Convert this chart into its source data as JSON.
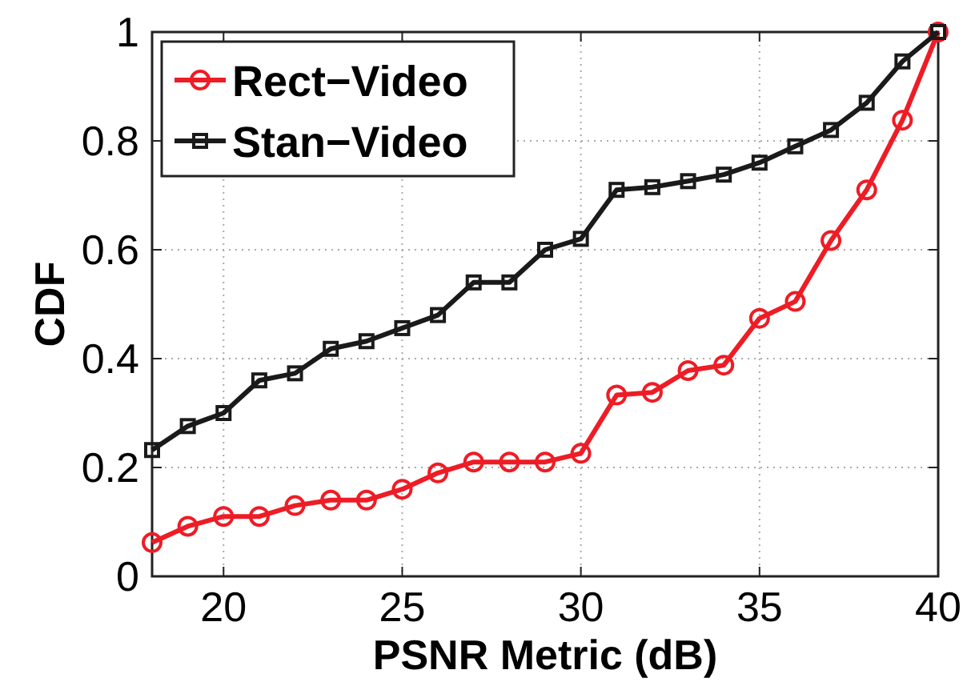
{
  "chart_data": {
    "type": "line",
    "xlabel": "PSNR Metric (dB)",
    "ylabel": "CDF",
    "x": [
      18,
      19,
      20,
      21,
      22,
      23,
      24,
      25,
      26,
      27,
      28,
      29,
      30,
      31,
      32,
      33,
      34,
      35,
      36,
      37,
      38,
      39,
      40
    ],
    "series": [
      {
        "name": "Rect−Video",
        "color": "#ee1c25",
        "marker": "circle",
        "values": [
          0.062,
          0.092,
          0.11,
          0.11,
          0.13,
          0.14,
          0.14,
          0.16,
          0.19,
          0.21,
          0.21,
          0.21,
          0.226,
          0.333,
          0.338,
          0.378,
          0.388,
          0.474,
          0.505,
          0.617,
          0.71,
          0.838,
          1
        ]
      },
      {
        "name": "Stan−Video",
        "color": "#1a1a1a",
        "marker": "square",
        "values": [
          0.232,
          0.276,
          0.3,
          0.36,
          0.373,
          0.418,
          0.432,
          0.456,
          0.48,
          0.54,
          0.54,
          0.6,
          0.62,
          0.71,
          0.715,
          0.726,
          0.738,
          0.76,
          0.79,
          0.82,
          0.87,
          0.946,
          1
        ]
      }
    ],
    "xlim": [
      18,
      40
    ],
    "xticks": [
      20,
      25,
      30,
      35,
      40
    ],
    "ylim": [
      0,
      1
    ],
    "yticks": [
      0,
      0.2,
      0.4,
      0.6,
      0.8,
      1
    ],
    "grid": true,
    "legend": "top left",
    "line_style": "solid"
  }
}
